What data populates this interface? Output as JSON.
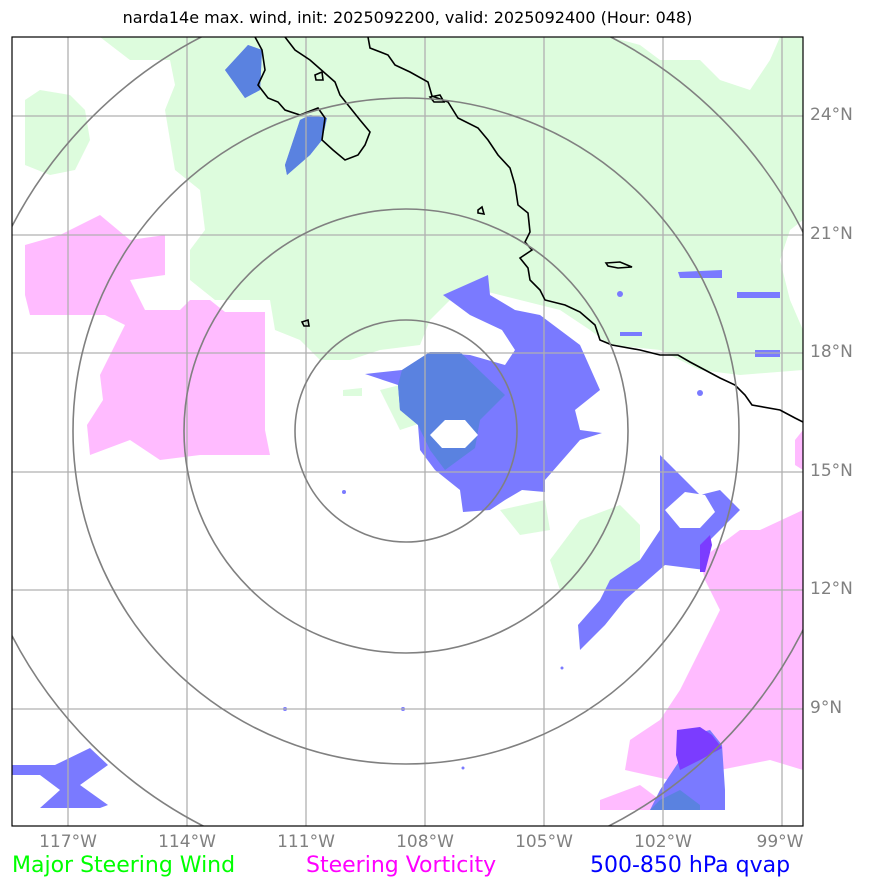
{
  "title": "narda14e max. wind, init: 2025092200, valid: 2025092400 (Hour: 048)",
  "map": {
    "lat_labels": [
      "24°N",
      "21°N",
      "18°N",
      "15°N",
      "12°N",
      "9°N"
    ],
    "lon_labels": [
      "117°W",
      "114°W",
      "111°W",
      "108°W",
      "105°W",
      "102°W",
      "99°W"
    ],
    "extent": {
      "lon_min": -118.5,
      "lon_max": -98.5,
      "lat_min": 6.5,
      "lat_max": 26.5
    },
    "center": {
      "lon": -108.5,
      "lat": 16.1
    },
    "range_rings": 4
  },
  "legend": [
    {
      "label": "Major Steering Wind",
      "color": "#00ff00"
    },
    {
      "label": "Steering Vorticity",
      "color": "#ff00ff"
    },
    {
      "label": "500-850 hPa qvap",
      "color": "#0000ff"
    }
  ],
  "colors": {
    "steering_wind_fill": "#ddfcdd",
    "vorticity_fill": "#ffbbff",
    "qvap_fill": "#7a7aff",
    "qvap_overlap": "#5a82e0",
    "qvap_core": "#7b3cff",
    "ring": "#808080",
    "grid": "#b0b0b0",
    "coast": "#000000"
  }
}
